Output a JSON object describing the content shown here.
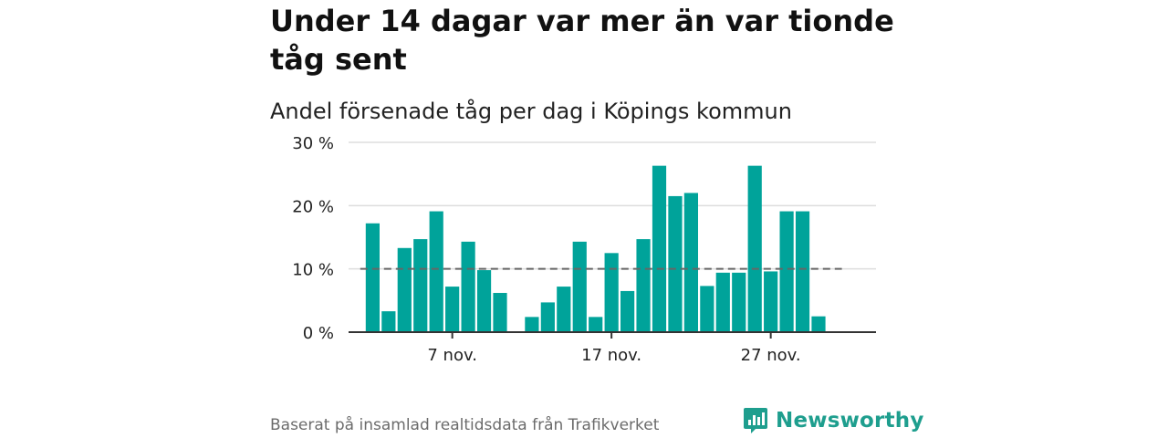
{
  "header": {
    "title": "Under 14 dagar var mer än var tionde tåg sent",
    "subtitle": "Andel försenade tåg per dag i Köpings kommun"
  },
  "footer": {
    "source": "Baserat på insamlad realtidsdata från Trafikverket",
    "brand": "Newsworthy",
    "brand_icon": "newsworthy-logo-icon"
  },
  "colors": {
    "bar": "#00a39a",
    "reference_line": "#666666",
    "grid": "#dddddd",
    "axis": "#333333",
    "brand": "#1e9e8e"
  },
  "chart_data": {
    "type": "bar",
    "title": "Under 14 dagar var mer än var tionde tåg sent",
    "subtitle": "Andel försenade tåg per dag i Köpings kommun",
    "xlabel": "",
    "ylabel": "",
    "x_start": "2023-11-02",
    "values": [
      17.2,
      3.3,
      13.3,
      14.7,
      19.1,
      7.2,
      14.3,
      9.8,
      6.2,
      null,
      2.4,
      4.7,
      7.2,
      14.3,
      2.4,
      12.5,
      6.5,
      14.7,
      26.3,
      21.5,
      22.0,
      7.3,
      9.4,
      9.4,
      26.3,
      9.6,
      19.1,
      19.1,
      2.5
    ],
    "reference_line": 10,
    "ylim": [
      0,
      30
    ],
    "yticks": [
      0,
      10,
      20,
      30
    ],
    "ytick_labels": [
      "0 %",
      "10 %",
      "20 %",
      "30 %"
    ],
    "xticks": [
      {
        "index": 5,
        "label": "7 nov."
      },
      {
        "index": 15,
        "label": "17 nov."
      },
      {
        "index": 25,
        "label": "27 nov."
      }
    ],
    "grid": true,
    "legend": "none"
  }
}
